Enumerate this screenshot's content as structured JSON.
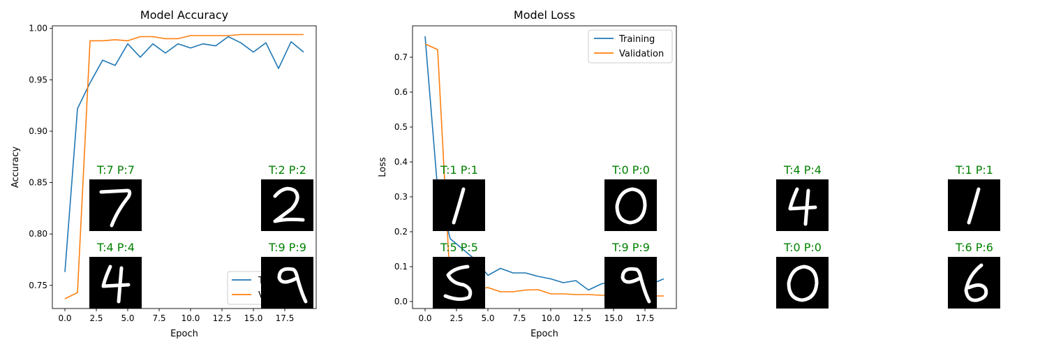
{
  "chart_data": [
    {
      "type": "line",
      "title": "Model Accuracy",
      "xlabel": "Epoch",
      "ylabel": "Accuracy",
      "xlim": [
        -1,
        20
      ],
      "ylim": [
        0.7275,
        1.0025
      ],
      "xticks": [
        0.0,
        2.5,
        5.0,
        7.5,
        10.0,
        12.5,
        15.0,
        17.5
      ],
      "xtick_labels": [
        "0.0",
        "2.5",
        "5.0",
        "7.5",
        "10.0",
        "12.5",
        "15.0",
        "17.5"
      ],
      "yticks": [
        0.75,
        0.8,
        0.85,
        0.9,
        0.95,
        1.0
      ],
      "ytick_labels": [
        "0.75",
        "0.80",
        "0.85",
        "0.90",
        "0.95",
        "1.00"
      ],
      "grid": false,
      "legend": "lower-right",
      "legend_visible_text": [
        "T",
        "V"
      ],
      "x": [
        0,
        1,
        2,
        3,
        4,
        5,
        6,
        7,
        8,
        9,
        10,
        11,
        12,
        13,
        14,
        15,
        16,
        17,
        18,
        19
      ],
      "series": [
        {
          "name": "Training",
          "color": "#1f77b4",
          "values": [
            0.763,
            0.922,
            0.947,
            0.969,
            0.964,
            0.985,
            0.972,
            0.985,
            0.976,
            0.985,
            0.981,
            0.985,
            0.983,
            0.992,
            0.986,
            0.977,
            0.986,
            0.961,
            0.987,
            0.977
          ]
        },
        {
          "name": "Validation",
          "color": "#ff7f0e",
          "values": [
            0.737,
            0.743,
            0.988,
            0.988,
            0.989,
            0.988,
            0.992,
            0.992,
            0.99,
            0.99,
            0.993,
            0.993,
            0.993,
            0.993,
            0.994,
            0.994,
            0.994,
            0.994,
            0.994,
            0.994
          ]
        }
      ]
    },
    {
      "type": "line",
      "title": "Model Loss",
      "xlabel": "Epoch",
      "ylabel": "Loss",
      "xlim": [
        -1,
        20
      ],
      "ylim": [
        -0.02,
        0.79
      ],
      "xticks": [
        0.0,
        2.5,
        5.0,
        7.5,
        10.0,
        12.5,
        15.0,
        17.5
      ],
      "xtick_labels": [
        "0.0",
        "2.5",
        "5.0",
        "7.5",
        "10.0",
        "12.5",
        "15.0",
        "17.5"
      ],
      "yticks": [
        0.0,
        0.1,
        0.2,
        0.3,
        0.4,
        0.5,
        0.6,
        0.7
      ],
      "ytick_labels": [
        "0.0",
        "0.1",
        "0.2",
        "0.3",
        "0.4",
        "0.5",
        "0.6",
        "0.7"
      ],
      "grid": false,
      "legend": "top-right",
      "legend_visible_text": [
        "Training",
        "Validation"
      ],
      "x": [
        0,
        1,
        2,
        3,
        4,
        5,
        6,
        7,
        8,
        9,
        10,
        11,
        12,
        13,
        14,
        15,
        16,
        17,
        18,
        19
      ],
      "series": [
        {
          "name": "Training",
          "color": "#1f77b4",
          "values": [
            0.76,
            0.32,
            0.18,
            0.15,
            0.12,
            0.075,
            0.095,
            0.082,
            0.082,
            0.072,
            0.065,
            0.054,
            0.06,
            0.033,
            0.05,
            0.06,
            0.055,
            0.05,
            0.05,
            0.065
          ]
        },
        {
          "name": "Validation",
          "color": "#ff7f0e",
          "values": [
            0.738,
            0.722,
            0.05,
            0.038,
            0.035,
            0.04,
            0.028,
            0.028,
            0.033,
            0.034,
            0.022,
            0.022,
            0.02,
            0.02,
            0.018,
            0.017,
            0.017,
            0.016,
            0.016,
            0.016
          ]
        }
      ]
    }
  ],
  "samples": [
    {
      "caption": "T:7 P:7",
      "glyph": "7"
    },
    {
      "caption": "T:2 P:2",
      "glyph": "2"
    },
    {
      "caption": "T:1 P:1",
      "glyph": "1"
    },
    {
      "caption": "T:0 P:0",
      "glyph": "0"
    },
    {
      "caption": "T:4 P:4",
      "glyph": "4"
    },
    {
      "caption": "T:1 P:1",
      "glyph": "1"
    },
    {
      "caption": "T:4 P:4",
      "glyph": "4"
    },
    {
      "caption": "T:9 P:9",
      "glyph": "9"
    },
    {
      "caption": "T:5 P:5",
      "glyph": "5"
    },
    {
      "caption": "T:9 P:9",
      "glyph": "9"
    },
    {
      "caption": "T:0 P:0",
      "glyph": "0"
    },
    {
      "caption": "T:6 P:6",
      "glyph": "6"
    }
  ],
  "colors": {
    "caption_text": "#008000",
    "axis": "#000000",
    "background": "#ffffff"
  }
}
